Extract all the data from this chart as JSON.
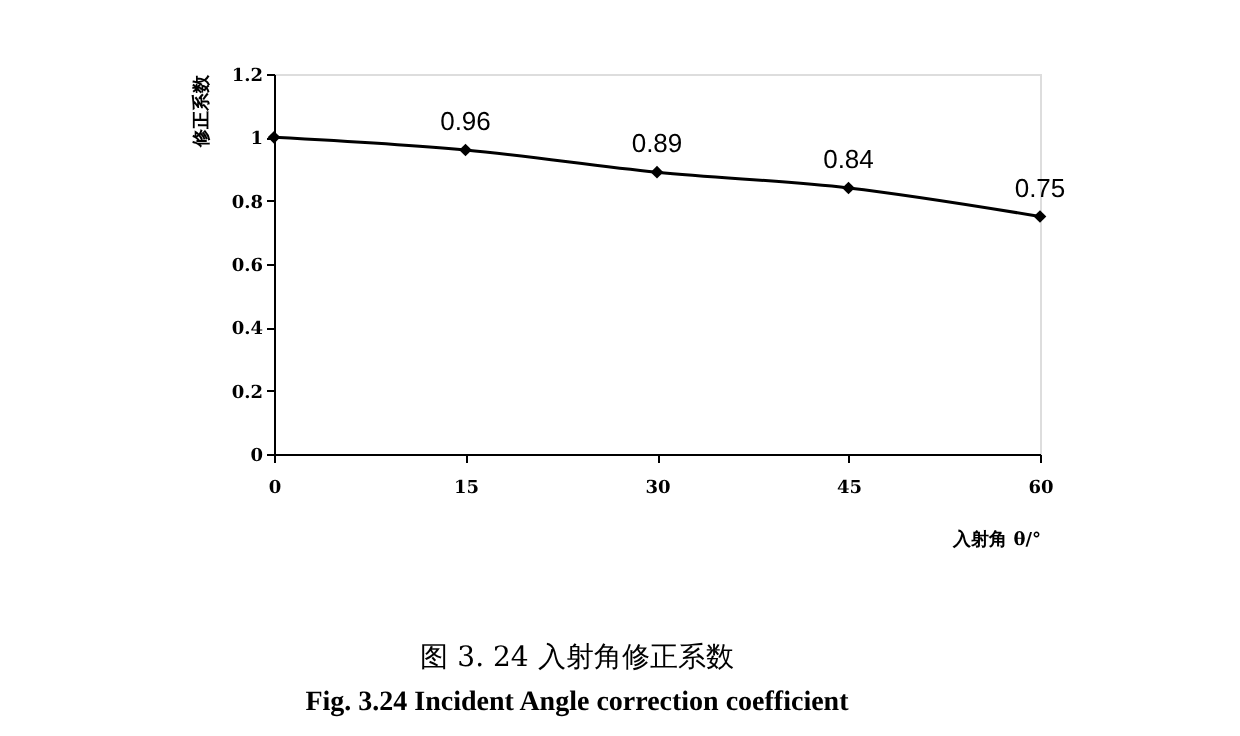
{
  "chart_data": {
    "type": "line",
    "xlabel": "入射角 θ/°",
    "ylabel": "修正系数",
    "x": [
      0,
      15,
      30,
      45,
      60
    ],
    "series": [
      {
        "color": "#000000",
        "values": [
          1,
          0.96,
          0.89,
          0.84,
          0.75
        ],
        "value_labels": [
          null,
          "0.96",
          "0.89",
          "0.84",
          "0.75"
        ]
      }
    ],
    "xlim": [
      0,
      60
    ],
    "xticks": [
      0,
      15,
      30,
      45,
      60
    ],
    "ylim": [
      0,
      1.2
    ],
    "yticks": [
      0,
      0.2,
      0.4,
      0.6,
      0.8,
      1,
      1.2
    ],
    "marker": "diamond",
    "line_style": "solid",
    "grid": false,
    "annotations": [
      "图 3. 24 入射角修正系数",
      "Fig. 3.24 Incident Angle correction coefficient"
    ]
  }
}
